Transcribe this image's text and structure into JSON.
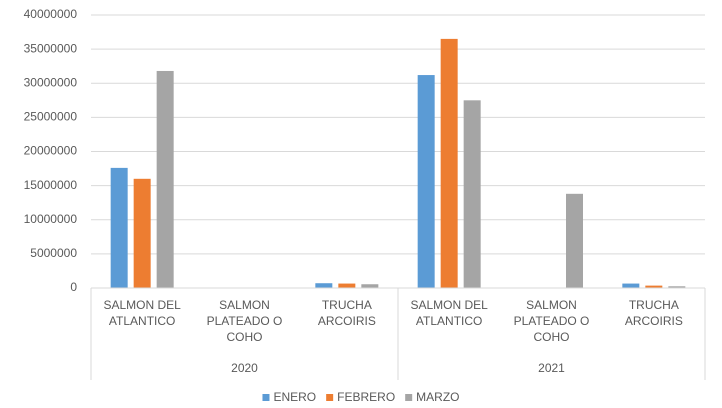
{
  "chart_data": {
    "type": "bar",
    "groups": [
      {
        "name": "2020",
        "categories": [
          "SALMON DEL ATLANTICO",
          "SALMON PLATEADO O COHO",
          "TRUCHA ARCOIRIS"
        ]
      },
      {
        "name": "2021",
        "categories": [
          "SALMON DEL ATLANTICO",
          "SALMON PLATEADO O COHO",
          "TRUCHA ARCOIRIS"
        ]
      }
    ],
    "series": [
      {
        "name": "ENERO",
        "color": "#5b9bd5",
        "values": [
          17600000,
          0,
          700000,
          31200000,
          0,
          650000
        ]
      },
      {
        "name": "FEBRERO",
        "color": "#ed7d31",
        "values": [
          16000000,
          0,
          650000,
          36500000,
          0,
          350000
        ]
      },
      {
        "name": "MARZO",
        "color": "#a5a5a5",
        "values": [
          31800000,
          0,
          550000,
          27500000,
          13800000,
          250000
        ]
      }
    ],
    "ylim": [
      0,
      40000000
    ],
    "yticks": [
      0,
      5000000,
      10000000,
      15000000,
      20000000,
      25000000,
      30000000,
      35000000,
      40000000
    ],
    "grid": true,
    "legend": "bottom"
  }
}
